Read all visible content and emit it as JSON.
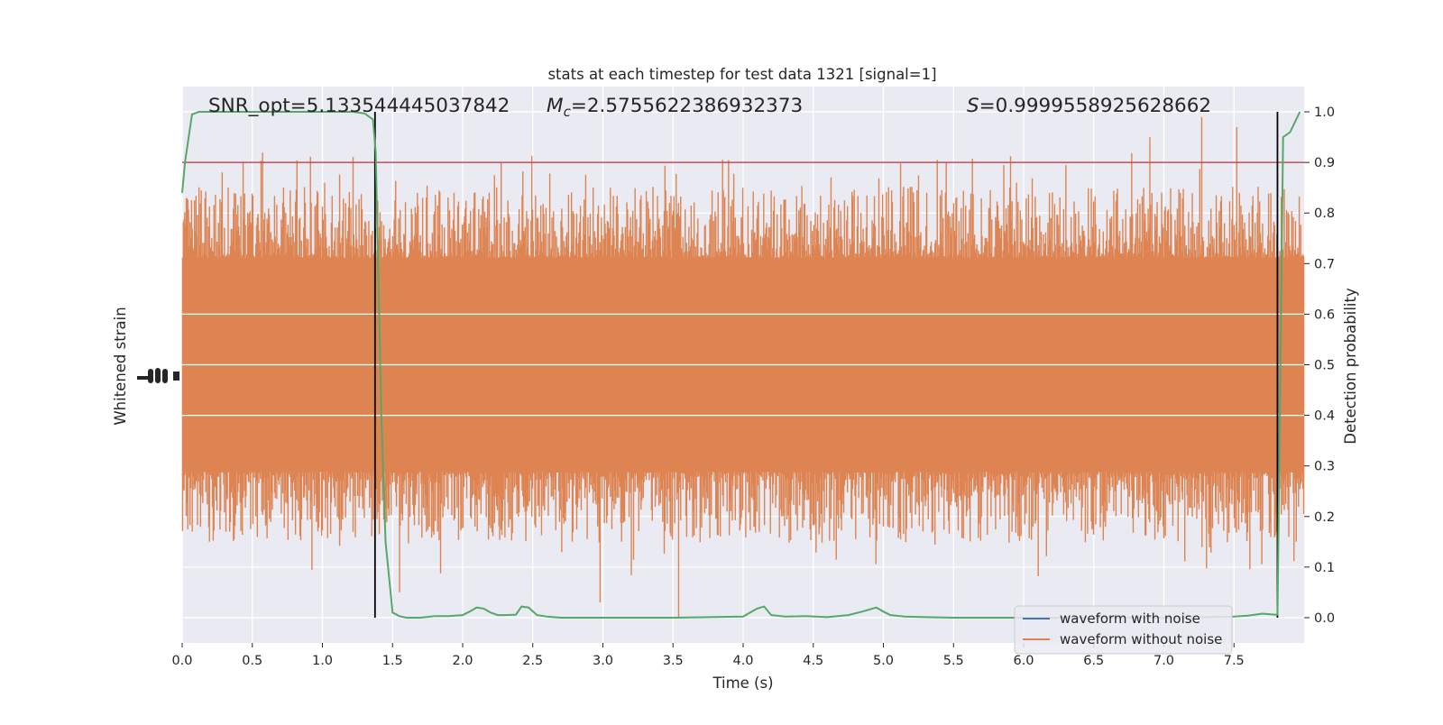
{
  "chart_data": {
    "type": "line",
    "title": "stats at each timestep for test data 1321 [signal=1]",
    "xlabel": "Time (s)",
    "ylabel_left": "Whitened strain",
    "ylabel_right": "Detection probability",
    "xlim": [
      0.0,
      8.0
    ],
    "ylim_right": [
      -0.05,
      1.05
    ],
    "x_ticks": [
      0.0,
      0.5,
      1.0,
      1.5,
      2.0,
      2.5,
      3.0,
      3.5,
      4.0,
      4.5,
      5.0,
      5.5,
      6.0,
      6.5,
      7.0,
      7.5
    ],
    "x_tick_labels": [
      "0.0",
      "0.5",
      "1.0",
      "1.5",
      "2.0",
      "2.5",
      "3.0",
      "3.5",
      "4.0",
      "4.5",
      "5.0",
      "5.5",
      "6.0",
      "6.5",
      "7.0",
      "7.5"
    ],
    "y_right_ticks": [
      0.0,
      0.1,
      0.2,
      0.3,
      0.4,
      0.5,
      0.6,
      0.7,
      0.8,
      0.9,
      1.0
    ],
    "y_right_tick_labels": [
      "0.0",
      "0.1",
      "0.2",
      "0.3",
      "0.4",
      "0.5",
      "0.6",
      "0.7",
      "0.8",
      "0.9",
      "1.0"
    ],
    "grid": true,
    "legend_position": "lower-right",
    "annotations": {
      "snr": "SNR_opt=5.133544445037842",
      "mc_symbol": "M",
      "mc_sub": "c",
      "mc_value": "=2.5755622386932373",
      "s_symbol": "S",
      "s_value": "=0.9999558925628662"
    },
    "threshold": 0.9,
    "vertical_markers": [
      1.375,
      7.81
    ],
    "colors": {
      "background": "#eaeaf2",
      "grid": "#ffffff",
      "noise": "#4c72b0",
      "clean": "#dd8452",
      "prob": "#55a868",
      "threshold": "#c44e52",
      "marker": "#000000"
    },
    "series": [
      {
        "name": "waveform with noise",
        "axis": "left",
        "note": "fully hidden behind the orange trace"
      },
      {
        "name": "waveform without noise",
        "axis": "left",
        "envelope_prob_units": {
          "core_low": 0.3,
          "core_high": 0.7,
          "spike_low_min": 0.0,
          "spike_high_max": 0.99
        }
      },
      {
        "name": "detection probability",
        "axis": "right",
        "x": [
          0.0,
          0.02,
          0.07,
          0.12,
          0.3,
          0.6,
          0.9,
          1.15,
          1.22,
          1.3,
          1.36,
          1.38,
          1.4,
          1.42,
          1.45,
          1.5,
          1.55,
          1.6,
          1.7,
          1.8,
          1.9,
          2.0,
          2.05,
          2.1,
          2.15,
          2.2,
          2.25,
          2.3,
          2.38,
          2.42,
          2.47,
          2.53,
          2.6,
          2.7,
          3.0,
          3.5,
          4.0,
          4.05,
          4.1,
          4.15,
          4.2,
          4.3,
          4.45,
          4.6,
          4.75,
          4.85,
          4.95,
          5.0,
          5.05,
          5.15,
          5.5,
          6.0,
          6.5,
          7.0,
          7.3,
          7.5,
          7.6,
          7.7,
          7.79,
          7.81,
          7.85,
          7.9,
          7.97
        ],
        "y": [
          0.84,
          0.9,
          0.995,
          1.0,
          1.0,
          1.0,
          1.0,
          1.0,
          1.0,
          0.997,
          0.985,
          0.92,
          0.66,
          0.4,
          0.15,
          0.01,
          0.003,
          0.0,
          0.0,
          0.003,
          0.003,
          0.005,
          0.012,
          0.02,
          0.018,
          0.01,
          0.005,
          0.005,
          0.006,
          0.022,
          0.02,
          0.005,
          0.002,
          0.0,
          0.0,
          0.0,
          0.002,
          0.01,
          0.018,
          0.022,
          0.005,
          0.002,
          0.003,
          0.001,
          0.005,
          0.012,
          0.02,
          0.012,
          0.005,
          0.002,
          0.0,
          0.0,
          0.0,
          0.0,
          0.001,
          0.002,
          0.004,
          0.008,
          0.006,
          0.006,
          0.95,
          0.96,
          1.0
        ]
      }
    ]
  }
}
